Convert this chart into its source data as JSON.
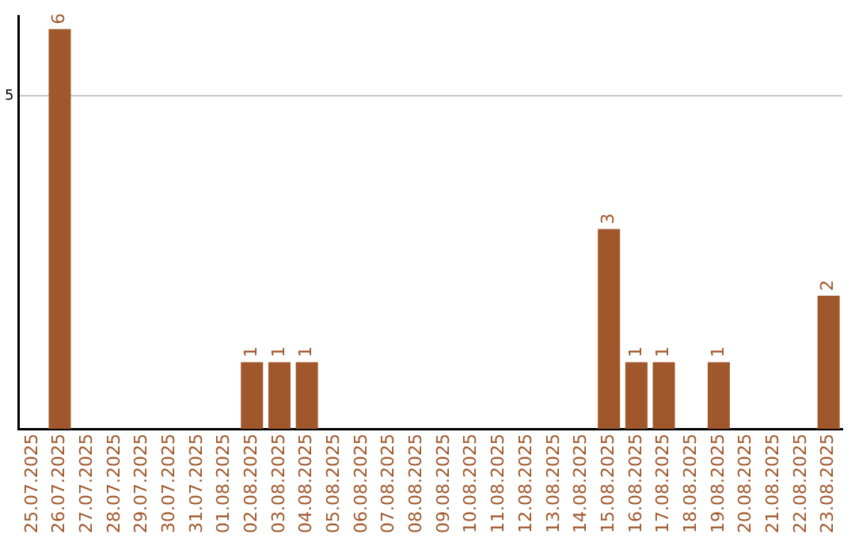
{
  "chart_data": {
    "type": "bar",
    "categories": [
      "25.07.2025",
      "26.07.2025",
      "27.07.2025",
      "28.07.2025",
      "29.07.2025",
      "30.07.2025",
      "31.07.2025",
      "01.08.2025",
      "02.08.2025",
      "03.08.2025",
      "04.08.2025",
      "05.08.2025",
      "06.08.2025",
      "07.08.2025",
      "08.08.2025",
      "09.08.2025",
      "10.08.2025",
      "11.08.2025",
      "12.08.2025",
      "13.08.2025",
      "14.08.2025",
      "15.08.2025",
      "16.08.2025",
      "17.08.2025",
      "18.08.2025",
      "19.08.2025",
      "20.08.2025",
      "21.08.2025",
      "22.08.2025",
      "23.08.2025"
    ],
    "values": [
      0,
      6,
      0,
      0,
      0,
      0,
      0,
      0,
      1,
      1,
      1,
      0,
      0,
      0,
      0,
      0,
      0,
      0,
      0,
      0,
      0,
      3,
      1,
      1,
      0,
      1,
      0,
      0,
      0,
      2
    ],
    "value_labels": [
      null,
      "6",
      null,
      null,
      null,
      null,
      null,
      null,
      "1",
      "1",
      "1",
      null,
      null,
      null,
      null,
      null,
      null,
      null,
      null,
      null,
      null,
      "3",
      "1",
      "1",
      null,
      "1",
      null,
      null,
      null,
      "2"
    ],
    "color": "#a0572b",
    "ylim": [
      0,
      6.2
    ],
    "yticks": [
      5
    ],
    "grid": "y",
    "legend": false
  }
}
